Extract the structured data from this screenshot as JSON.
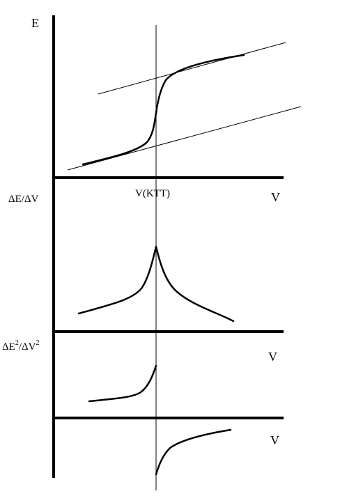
{
  "labels": {
    "e_axis": "E",
    "de_dv_axis": "ΔE/ΔV",
    "d2e_dv2_prefix": "ΔE",
    "d2e_dv2_sup1": "2",
    "d2e_dv2_mid": "/ΔV",
    "d2e_dv2_sup2": "2",
    "v_top": "V",
    "v_mid": "V",
    "v_bottom": "V",
    "equivalence_point": "V(KTT)"
  },
  "colors": {
    "ink": "#000000",
    "background": "#ffffff"
  }
}
